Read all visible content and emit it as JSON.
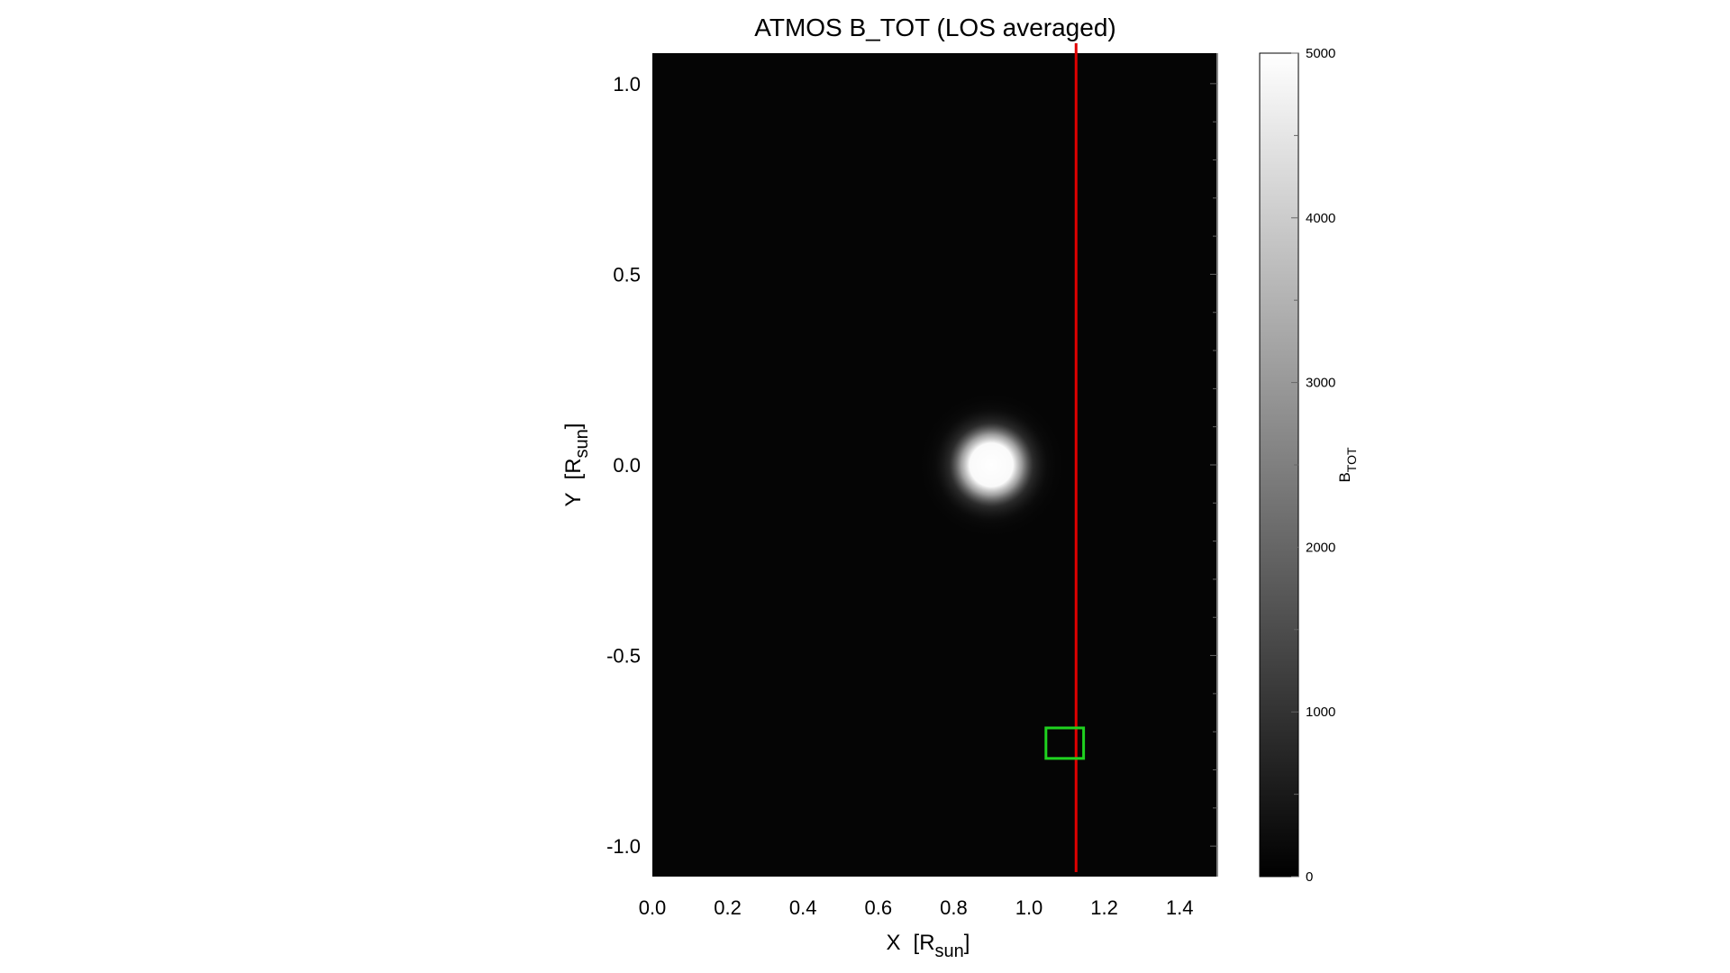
{
  "chart_data": {
    "type": "heatmap",
    "title": "ATMOS B_TOT (LOS averaged)",
    "xlabel": {
      "main": "X",
      "unit_open": "[R",
      "unit_sub": "sun",
      "unit_close": "]"
    },
    "ylabel": {
      "main": "Y",
      "unit_open": "[R",
      "unit_sub": "sun",
      "unit_close": "]"
    },
    "xlim": [
      0.0,
      1.5
    ],
    "ylim": [
      -1.08,
      1.08
    ],
    "xticks": [
      "0.0",
      "0.2",
      "0.4",
      "0.6",
      "0.8",
      "1.0",
      "1.2",
      "1.4"
    ],
    "yticks": [
      "1.0",
      "0.5",
      "0.0",
      "-0.5",
      "-1.0"
    ],
    "colormap": "grayscale",
    "colorbar": {
      "label_main": "B",
      "label_sub": "TOT",
      "range": [
        0,
        5000
      ],
      "ticks": [
        "0",
        "1000",
        "2000",
        "3000",
        "4000",
        "5000"
      ]
    },
    "blob": {
      "x": 0.9,
      "y": 0.0,
      "peak": 5000,
      "core_radius": 0.06
    },
    "line": {
      "x": 1.125,
      "color": "#e00000"
    },
    "box": {
      "x0": 1.045,
      "x1": 1.145,
      "y0": -0.77,
      "y1": -0.69,
      "color": "#1fd21f"
    },
    "grid": false
  }
}
